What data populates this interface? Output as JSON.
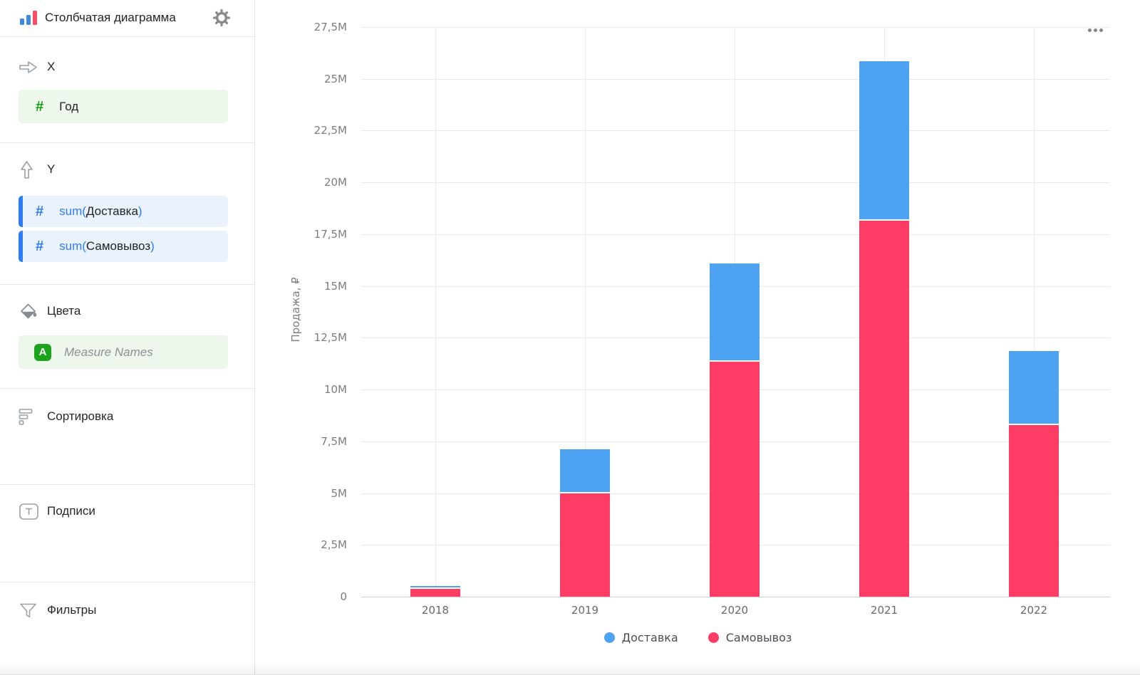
{
  "sidebar": {
    "title": "Столбчатая диаграмма",
    "sections": {
      "x": {
        "label": "X"
      },
      "y": {
        "label": "Y"
      },
      "colors": {
        "label": "Цвета"
      },
      "sorting": {
        "label": "Сортировка"
      },
      "labels": {
        "label": "Подписи"
      },
      "filters": {
        "label": "Фильтры"
      }
    },
    "x_field": {
      "name": "Год"
    },
    "y_fields": [
      {
        "prefix": "sum(",
        "name": "Доставка",
        "suffix": ")"
      },
      {
        "prefix": "sum(",
        "name": "Самовывоз",
        "suffix": ")"
      }
    ],
    "colors_field": {
      "badge": "A",
      "name": "Measure Names"
    }
  },
  "accent_colors": {
    "dimension_green": "#0ca10c",
    "measure_blue": "#2e7df6",
    "bar_blue": "#4da2f1",
    "bar_red": "#ff3d64"
  },
  "chart_data": {
    "type": "bar",
    "stacked": true,
    "categories": [
      "2018",
      "2019",
      "2020",
      "2021",
      "2022"
    ],
    "series": [
      {
        "name": "Доставка",
        "color": "#4da2f1",
        "values": [
          0.15,
          2.1,
          4.75,
          7.7,
          3.55
        ]
      },
      {
        "name": "Самовывоз",
        "color": "#ff3d64",
        "values": [
          0.37,
          5.0,
          11.35,
          18.15,
          8.3
        ]
      }
    ],
    "stack_order": "last_series_at_bottom",
    "values_unit": "millions of rubles",
    "xlabel": "",
    "ylabel": "Продажа, ₽",
    "ylim": [
      0,
      27.5
    ],
    "yticks": [
      {
        "v": 0,
        "label": "0"
      },
      {
        "v": 2.5,
        "label": "2,5M"
      },
      {
        "v": 5,
        "label": "5M"
      },
      {
        "v": 7.5,
        "label": "7,5M"
      },
      {
        "v": 10,
        "label": "10M"
      },
      {
        "v": 12.5,
        "label": "12,5M"
      },
      {
        "v": 15,
        "label": "15M"
      },
      {
        "v": 17.5,
        "label": "17,5M"
      },
      {
        "v": 20,
        "label": "20M"
      },
      {
        "v": 22.5,
        "label": "22,5M"
      },
      {
        "v": 25,
        "label": "25M"
      },
      {
        "v": 27.5,
        "label": "27,5M"
      }
    ],
    "grid": true,
    "legend_position": "bottom-center"
  }
}
